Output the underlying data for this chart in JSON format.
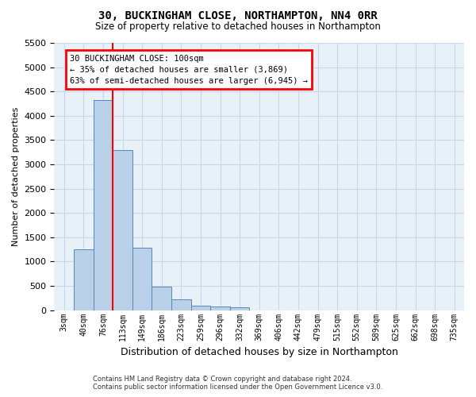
{
  "title": "30, BUCKINGHAM CLOSE, NORTHAMPTON, NN4 0RR",
  "subtitle": "Size of property relative to detached houses in Northampton",
  "xlabel": "Distribution of detached houses by size in Northampton",
  "ylabel": "Number of detached properties",
  "footer_line1": "Contains HM Land Registry data © Crown copyright and database right 2024.",
  "footer_line2": "Contains public sector information licensed under the Open Government Licence v3.0.",
  "categories": [
    "3sqm",
    "40sqm",
    "76sqm",
    "113sqm",
    "149sqm",
    "186sqm",
    "223sqm",
    "259sqm",
    "296sqm",
    "332sqm",
    "369sqm",
    "406sqm",
    "442sqm",
    "479sqm",
    "515sqm",
    "552sqm",
    "589sqm",
    "625sqm",
    "662sqm",
    "698sqm",
    "735sqm"
  ],
  "bar_values": [
    0,
    1260,
    4320,
    3300,
    1280,
    480,
    215,
    90,
    70,
    60,
    0,
    0,
    0,
    0,
    0,
    0,
    0,
    0,
    0,
    0,
    0
  ],
  "bar_color": "#b8d0e8",
  "bar_edge_color": "#5588bb",
  "grid_color": "#c8d8e8",
  "bg_color": "#e8f0f8",
  "red_line_x": 2.5,
  "ylim_max": 5500,
  "yticks": [
    0,
    500,
    1000,
    1500,
    2000,
    2500,
    3000,
    3500,
    4000,
    4500,
    5000,
    5500
  ],
  "annotation_title": "30 BUCKINGHAM CLOSE: 100sqm",
  "annotation_line1": "← 35% of detached houses are smaller (3,869)",
  "annotation_line2": "63% of semi-detached houses are larger (6,945) →"
}
